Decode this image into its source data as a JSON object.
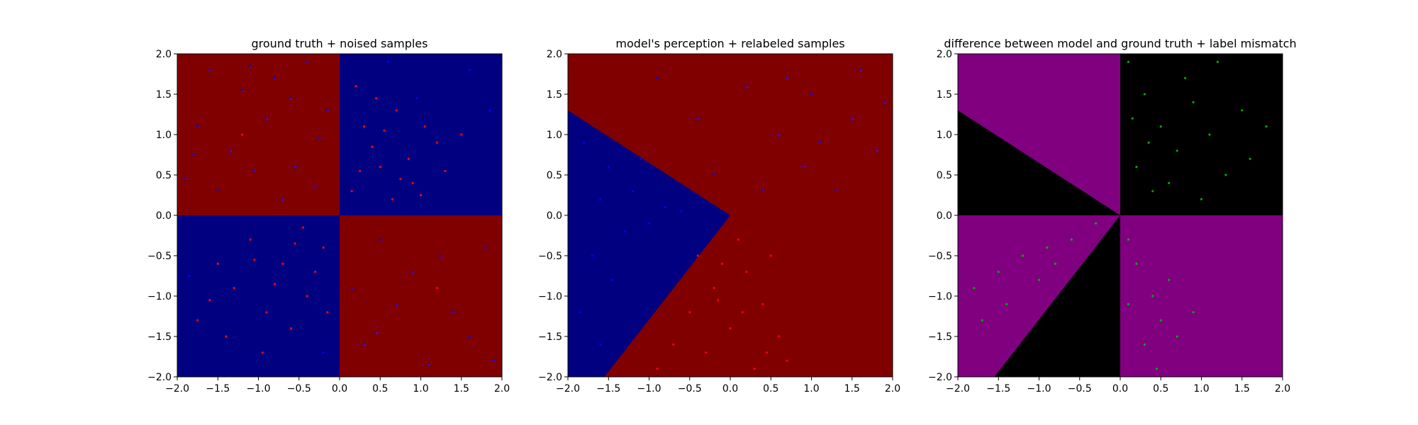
{
  "chart_data": [
    {
      "type": "scatter",
      "title": "ground truth + noised samples",
      "xlim": [
        -2.0,
        2.0
      ],
      "ylim": [
        -2.0,
        2.0
      ],
      "xticks": [
        "−2.0",
        "−1.5",
        "−1.0",
        "−0.5",
        "0.0",
        "0.5",
        "1.0",
        "1.5",
        "2.0"
      ],
      "yticks": [
        "−2.0",
        "−1.5",
        "−1.0",
        "−0.5",
        "0.0",
        "0.5",
        "1.0",
        "1.5",
        "2.0"
      ],
      "background_regions": [
        {
          "polygon": [
            [
              -2,
              0
            ],
            [
              0,
              0
            ],
            [
              0,
              2
            ],
            [
              -2,
              2
            ]
          ],
          "color": "#800000"
        },
        {
          "polygon": [
            [
              0,
              0
            ],
            [
              2,
              0
            ],
            [
              2,
              2
            ],
            [
              0,
              2
            ]
          ],
          "color": "#000080"
        },
        {
          "polygon": [
            [
              -2,
              -2
            ],
            [
              0,
              -2
            ],
            [
              0,
              0
            ],
            [
              -2,
              0
            ]
          ],
          "color": "#000080"
        },
        {
          "polygon": [
            [
              0,
              -2
            ],
            [
              2,
              -2
            ],
            [
              2,
              0
            ],
            [
              0,
              0
            ]
          ],
          "color": "#800000"
        }
      ],
      "series": [
        {
          "color": "#0000ff",
          "points": [
            [
              -1.6,
              1.8
            ],
            [
              -1.2,
              1.55
            ],
            [
              -0.8,
              1.7
            ],
            [
              -0.4,
              1.9
            ],
            [
              -0.15,
              1.3
            ],
            [
              -1.75,
              1.1
            ],
            [
              -1.35,
              0.8
            ],
            [
              -0.9,
              1.2
            ],
            [
              -0.55,
              0.6
            ],
            [
              -0.25,
              0.95
            ],
            [
              -1.9,
              0.45
            ],
            [
              -1.5,
              0.3
            ],
            [
              -1.05,
              0.55
            ],
            [
              -0.7,
              0.2
            ],
            [
              -0.3,
              0.35
            ],
            [
              -1.8,
              0.75
            ],
            [
              -1.1,
              1.85
            ],
            [
              -0.6,
              1.45
            ],
            [
              1.85,
              1.3
            ],
            [
              1.6,
              1.8
            ],
            [
              0.5,
              -0.3
            ],
            [
              0.9,
              -0.7
            ],
            [
              1.4,
              -1.2
            ],
            [
              1.8,
              -0.4
            ],
            [
              0.3,
              -1.6
            ],
            [
              1.1,
              -1.85
            ],
            [
              1.6,
              -1.5
            ],
            [
              0.7,
              -1.1
            ],
            [
              1.25,
              -0.5
            ],
            [
              0.15,
              -0.9
            ],
            [
              1.9,
              -1.8
            ],
            [
              0.45,
              -1.45
            ],
            [
              -1.85,
              -0.75
            ],
            [
              -0.2,
              -1.7
            ],
            [
              0.6,
              1.9
            ],
            [
              0.95,
              1.45
            ]
          ]
        },
        {
          "color": "#ff0000",
          "points": [
            [
              0.3,
              1.1
            ],
            [
              0.5,
              0.6
            ],
            [
              0.7,
              1.3
            ],
            [
              0.9,
              0.4
            ],
            [
              1.2,
              0.9
            ],
            [
              0.15,
              0.3
            ],
            [
              0.4,
              0.85
            ],
            [
              0.65,
              0.2
            ],
            [
              1.05,
              1.1
            ],
            [
              0.85,
              0.7
            ],
            [
              0.25,
              0.55
            ],
            [
              0.55,
              1.05
            ],
            [
              1.3,
              0.55
            ],
            [
              0.75,
              0.45
            ],
            [
              0.45,
              1.45
            ],
            [
              1.0,
              0.25
            ],
            [
              0.2,
              1.6
            ],
            [
              1.5,
              1.0
            ],
            [
              -1.5,
              -0.6
            ],
            [
              -1.1,
              -0.3
            ],
            [
              -0.7,
              -0.6
            ],
            [
              -0.4,
              -1.0
            ],
            [
              -0.9,
              -1.2
            ],
            [
              -0.2,
              -0.4
            ],
            [
              -1.3,
              -0.9
            ],
            [
              -0.55,
              -0.35
            ],
            [
              -0.8,
              -0.85
            ],
            [
              -0.3,
              -0.7
            ],
            [
              -1.05,
              -0.55
            ],
            [
              -0.6,
              -1.4
            ],
            [
              -1.6,
              -1.05
            ],
            [
              -0.15,
              -1.2
            ],
            [
              -1.4,
              -1.5
            ],
            [
              -0.95,
              -1.7
            ],
            [
              -0.45,
              -0.15
            ],
            [
              -1.75,
              -1.3
            ],
            [
              -1.2,
              1.0
            ],
            [
              1.2,
              -0.9
            ]
          ]
        }
      ]
    },
    {
      "type": "scatter",
      "title": "model's perception + relabeled samples",
      "xlim": [
        -2.0,
        2.0
      ],
      "ylim": [
        -2.0,
        2.0
      ],
      "xticks": [
        "−2.0",
        "−1.5",
        "−1.0",
        "−0.5",
        "0.0",
        "0.5",
        "1.0",
        "1.5",
        "2.0"
      ],
      "yticks": [
        "−2.0",
        "−1.5",
        "−1.0",
        "−0.5",
        "0.0",
        "0.5",
        "1.0",
        "1.5",
        "2.0"
      ],
      "background_regions": [
        {
          "polygon": [
            [
              -2,
              -2
            ],
            [
              2,
              -2
            ],
            [
              2,
              2
            ],
            [
              -2,
              2
            ]
          ],
          "color": "#800000"
        },
        {
          "polygon": [
            [
              -2,
              1.3
            ],
            [
              0,
              0
            ],
            [
              -1.55,
              -2
            ],
            [
              -2,
              -2
            ]
          ],
          "color": "#000080"
        }
      ],
      "series": [
        {
          "color": "#0000ff",
          "points": [
            [
              -1.8,
              0.9
            ],
            [
              -1.5,
              0.6
            ],
            [
              -1.2,
              0.3
            ],
            [
              -0.8,
              0.1
            ],
            [
              -1.6,
              0.2
            ],
            [
              -1.3,
              -0.2
            ],
            [
              -1.0,
              -0.1
            ],
            [
              -1.7,
              -0.5
            ],
            [
              -1.45,
              -0.8
            ],
            [
              -1.85,
              -1.2
            ],
            [
              -1.6,
              -1.6
            ],
            [
              -0.6,
              0.05
            ],
            [
              -0.4,
              1.2
            ],
            [
              0.2,
              1.6
            ],
            [
              0.6,
              1.0
            ],
            [
              1.0,
              1.5
            ],
            [
              1.5,
              1.2
            ],
            [
              0.9,
              0.6
            ],
            [
              1.3,
              0.3
            ],
            [
              1.8,
              0.8
            ],
            [
              0.4,
              0.3
            ],
            [
              1.6,
              1.8
            ],
            [
              -0.9,
              1.7
            ],
            [
              -0.2,
              0.5
            ],
            [
              1.1,
              0.9
            ],
            [
              0.7,
              1.7
            ],
            [
              1.9,
              1.4
            ],
            [
              -1.1,
              0.7
            ]
          ]
        },
        {
          "color": "#ff0000",
          "points": [
            [
              0.1,
              -0.3
            ],
            [
              0.2,
              -0.7
            ],
            [
              -0.2,
              -0.9
            ],
            [
              0.4,
              -1.1
            ],
            [
              0.0,
              -1.4
            ],
            [
              -0.5,
              -1.2
            ],
            [
              0.6,
              -1.5
            ],
            [
              -0.3,
              -1.7
            ],
            [
              0.3,
              -1.9
            ],
            [
              -0.7,
              -1.6
            ],
            [
              0.5,
              -0.5
            ],
            [
              -0.1,
              -0.6
            ],
            [
              0.7,
              -1.8
            ],
            [
              -0.9,
              -1.9
            ],
            [
              0.15,
              -1.2
            ],
            [
              -0.4,
              -0.5
            ],
            [
              0.45,
              -1.7
            ],
            [
              -0.15,
              -1.05
            ]
          ]
        }
      ]
    },
    {
      "type": "scatter",
      "title": "difference between model and ground truth + label mismatch",
      "xlim": [
        -2.0,
        2.0
      ],
      "ylim": [
        -2.0,
        2.0
      ],
      "xticks": [
        "−2.0",
        "−1.5",
        "−1.0",
        "−0.5",
        "0.0",
        "0.5",
        "1.0",
        "1.5",
        "2.0"
      ],
      "yticks": [
        "−2.0",
        "−1.5",
        "−1.0",
        "−0.5",
        "0.0",
        "0.5",
        "1.0",
        "1.5",
        "2.0"
      ],
      "background_regions": [
        {
          "polygon": [
            [
              -2,
              -2
            ],
            [
              2,
              -2
            ],
            [
              2,
              2
            ],
            [
              -2,
              2
            ]
          ],
          "color": "#800080"
        },
        {
          "polygon": [
            [
              0,
              0
            ],
            [
              2,
              0
            ],
            [
              2,
              2
            ],
            [
              0,
              2
            ]
          ],
          "color": "#000000"
        },
        {
          "polygon": [
            [
              -2,
              0
            ],
            [
              0,
              0
            ],
            [
              -2,
              1.3
            ]
          ],
          "color": "#000000"
        },
        {
          "polygon": [
            [
              0,
              0
            ],
            [
              0,
              -2
            ],
            [
              -1.55,
              -2
            ]
          ],
          "color": "#000000"
        }
      ],
      "series": [
        {
          "color": "#00aa00",
          "points": [
            [
              0.1,
              1.9
            ],
            [
              0.3,
              1.5
            ],
            [
              0.5,
              1.1
            ],
            [
              0.7,
              0.8
            ],
            [
              0.2,
              0.6
            ],
            [
              0.4,
              0.3
            ],
            [
              0.9,
              1.4
            ],
            [
              1.1,
              1.0
            ],
            [
              1.3,
              0.5
            ],
            [
              0.6,
              0.4
            ],
            [
              1.5,
              1.3
            ],
            [
              0.8,
              1.7
            ],
            [
              1.2,
              1.9
            ],
            [
              1.6,
              0.7
            ],
            [
              0.15,
              1.2
            ],
            [
              1.8,
              1.1
            ],
            [
              0.35,
              0.9
            ],
            [
              1.0,
              0.2
            ],
            [
              -0.3,
              -0.1
            ],
            [
              -0.6,
              -0.3
            ],
            [
              -0.9,
              -0.4
            ],
            [
              -1.2,
              -0.5
            ],
            [
              -1.5,
              -0.7
            ],
            [
              -1.8,
              -0.9
            ],
            [
              -1.0,
              -0.8
            ],
            [
              -1.4,
              -1.1
            ],
            [
              -1.7,
              -1.3
            ],
            [
              -0.8,
              -0.6
            ],
            [
              0.1,
              -0.3
            ],
            [
              0.2,
              -0.6
            ],
            [
              0.4,
              -1.0
            ],
            [
              0.5,
              -1.3
            ],
            [
              0.3,
              -1.6
            ],
            [
              0.7,
              -1.5
            ],
            [
              0.1,
              -1.1
            ],
            [
              0.6,
              -0.8
            ],
            [
              0.9,
              -1.2
            ],
            [
              0.45,
              -1.9
            ]
          ]
        }
      ]
    }
  ]
}
